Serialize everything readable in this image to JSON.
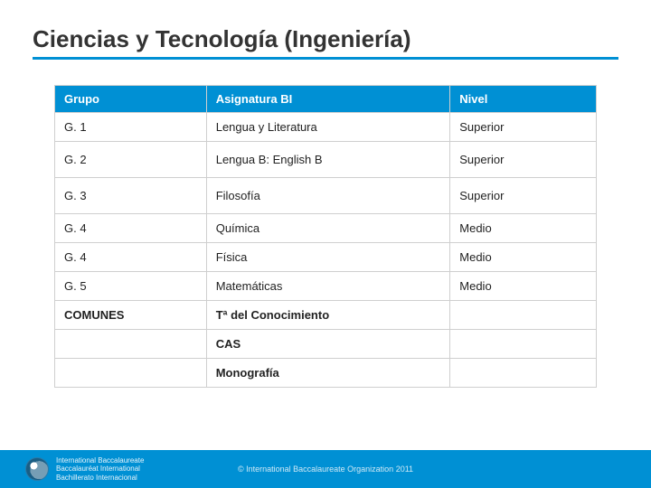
{
  "title": "Ciencias y Tecnología (Ingeniería)",
  "table": {
    "type": "table",
    "columns": [
      "Grupo",
      "Asignatura BI",
      "Nivel"
    ],
    "column_widths_pct": [
      28,
      45,
      27
    ],
    "header_bg": "#0090d4",
    "header_fg": "#ffffff",
    "cell_bg": "#ffffff",
    "cell_fg": "#222222",
    "border_color": "#cfcfcf",
    "font_size_pt": 10,
    "rows": [
      {
        "grupo": "G. 1",
        "asignatura": "Lengua y Literatura",
        "nivel": "Superior",
        "tall": false,
        "bold": false
      },
      {
        "grupo": "G. 2",
        "asignatura": "Lengua B: English B",
        "nivel": "Superior",
        "tall": true,
        "bold": false
      },
      {
        "grupo": "G. 3",
        "asignatura": "Filosofía",
        "nivel": "Superior",
        "tall": true,
        "bold": false
      },
      {
        "grupo": "G. 4",
        "asignatura": "Química",
        "nivel": "Medio",
        "tall": false,
        "bold": false
      },
      {
        "grupo": "G. 4",
        "asignatura": "Física",
        "nivel": "Medio",
        "tall": false,
        "bold": false
      },
      {
        "grupo": "G. 5",
        "asignatura": "Matemáticas",
        "nivel": "Medio",
        "tall": false,
        "bold": false
      },
      {
        "grupo": "COMUNES",
        "asignatura": "Tª del Conocimiento",
        "nivel": "",
        "tall": false,
        "bold": true
      },
      {
        "grupo": "",
        "asignatura": "CAS",
        "nivel": "",
        "tall": false,
        "bold": true
      },
      {
        "grupo": "",
        "asignatura": "Monografía",
        "nivel": "",
        "tall": false,
        "bold": true
      }
    ]
  },
  "footer": {
    "bg": "#0090d4",
    "logo_lines": [
      "International Baccalaureate",
      "Baccalauréat International",
      "Bachillerato Internacional"
    ],
    "copyright": "© International Baccalaureate Organization 2011"
  },
  "colors": {
    "title_fg": "#333333",
    "underline": "#0090d4",
    "background": "#ffffff"
  }
}
